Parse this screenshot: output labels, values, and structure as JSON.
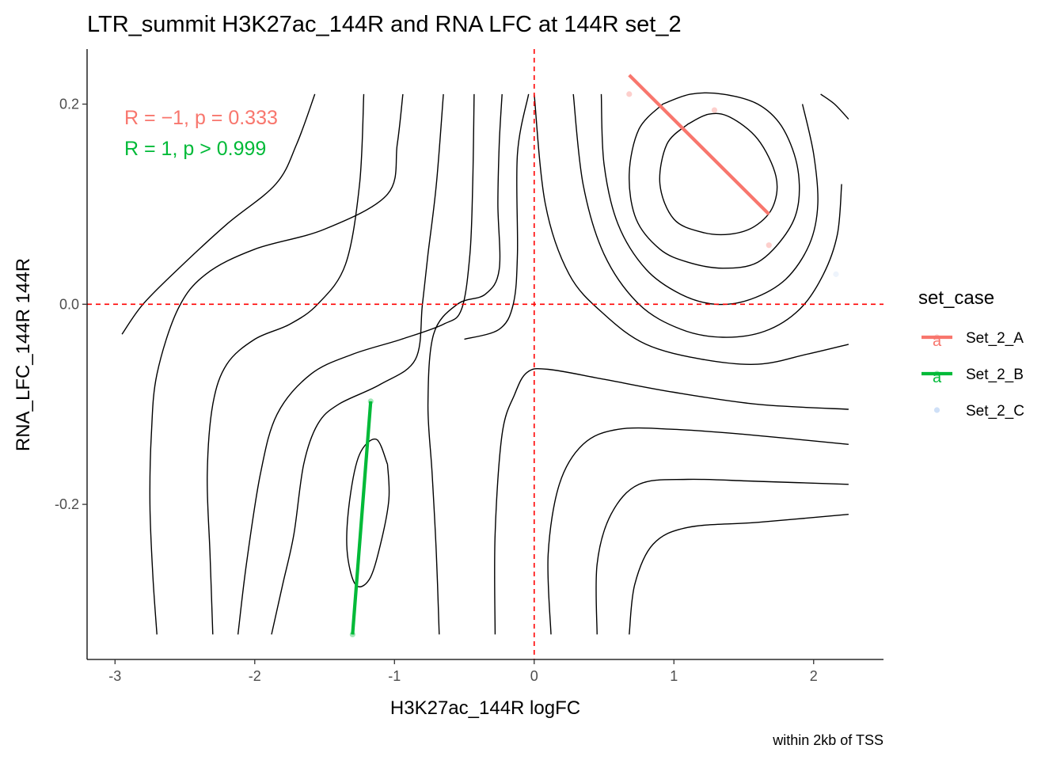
{
  "chart_data": {
    "type": "scatter",
    "title": "LTR_summit H3K27ac_144R and RNA LFC at 144R set_2",
    "xlabel": "H3K27ac_144R logFC",
    "ylabel": "RNA_LFC_144R 144R",
    "caption": "within 2kb of TSS",
    "xlim": [
      -3.2,
      2.5
    ],
    "ylim": [
      -0.355,
      0.255
    ],
    "x_ticks": [
      -3,
      -2,
      -1,
      0,
      1,
      2
    ],
    "x_tick_labels": [
      "-3",
      "-2",
      "-1",
      "0",
      "1",
      "2"
    ],
    "y_ticks": [
      -0.2,
      0.0,
      0.2
    ],
    "y_tick_labels": [
      "-0.2",
      "0.0",
      "0.2"
    ],
    "grid": false,
    "reference_lines": {
      "x": 0,
      "y": 0,
      "color": "#ff0000",
      "style": "dashed"
    },
    "legend": {
      "title": "set_case",
      "position": "right",
      "entries": [
        {
          "label": "Set_2_A",
          "color": "#f8766d",
          "key_glyph": "a"
        },
        {
          "label": "Set_2_B",
          "color": "#00ba38",
          "key_glyph": "a"
        },
        {
          "label": "Set_2_C",
          "color": "#cfe0f7",
          "key_glyph": ""
        }
      ]
    },
    "stats": [
      {
        "series": "Set_2_A",
        "text": "R = −1, p = 0.333",
        "color": "#f8766d"
      },
      {
        "series": "Set_2_B",
        "text": "R = 1, p > 0.999",
        "color": "#00ba38"
      }
    ],
    "series": [
      {
        "name": "Set_2_A",
        "color": "#f8766d",
        "points": [
          {
            "x": 0.68,
            "y": 0.21
          },
          {
            "x": 1.29,
            "y": 0.194
          },
          {
            "x": 1.68,
            "y": 0.059
          }
        ],
        "fit": {
          "x": [
            0.68,
            1.68
          ],
          "y": [
            0.229,
            0.09
          ]
        }
      },
      {
        "name": "Set_2_B",
        "color": "#00ba38",
        "points": [
          {
            "x": -1.17,
            "y": -0.097
          },
          {
            "x": -1.3,
            "y": -0.33
          }
        ],
        "fit": {
          "x": [
            -1.3,
            -1.17
          ],
          "y": [
            -0.33,
            -0.097
          ]
        }
      },
      {
        "name": "Set_2_C",
        "color": "#cfe0f7",
        "points": [
          {
            "x": 2.16,
            "y": 0.03
          }
        ]
      }
    ],
    "density_contours": [
      [
        [
          -1.05,
          -0.16
        ],
        [
          -1.13,
          -0.135
        ],
        [
          -1.25,
          -0.15
        ],
        [
          -1.32,
          -0.195
        ],
        [
          -1.34,
          -0.245
        ],
        [
          -1.28,
          -0.28
        ],
        [
          -1.18,
          -0.275
        ],
        [
          -1.1,
          -0.24
        ],
        [
          -1.04,
          -0.195
        ],
        [
          -1.05,
          -0.16
        ]
      ],
      [
        [
          1.1,
          0.18
        ],
        [
          0.95,
          0.16
        ],
        [
          0.9,
          0.12
        ],
        [
          1.0,
          0.085
        ],
        [
          1.2,
          0.072
        ],
        [
          1.4,
          0.07
        ],
        [
          1.58,
          0.078
        ],
        [
          1.71,
          0.098
        ],
        [
          1.73,
          0.128
        ],
        [
          1.6,
          0.165
        ],
        [
          1.4,
          0.187
        ],
        [
          1.25,
          0.19
        ],
        [
          1.1,
          0.18
        ]
      ],
      [
        [
          0.92,
          0.2
        ],
        [
          0.75,
          0.175
        ],
        [
          0.68,
          0.13
        ],
        [
          0.73,
          0.085
        ],
        [
          0.9,
          0.055
        ],
        [
          1.1,
          0.042
        ],
        [
          1.35,
          0.036
        ],
        [
          1.6,
          0.042
        ],
        [
          1.8,
          0.07
        ],
        [
          1.89,
          0.1
        ],
        [
          1.88,
          0.14
        ],
        [
          1.77,
          0.178
        ],
        [
          1.6,
          0.2
        ],
        [
          1.35,
          0.21
        ],
        [
          1.12,
          0.21
        ],
        [
          0.92,
          0.2
        ]
      ],
      [
        [
          0.48,
          0.21
        ],
        [
          0.5,
          0.14
        ],
        [
          0.6,
          0.08
        ],
        [
          0.8,
          0.035
        ],
        [
          1.05,
          0.01
        ],
        [
          1.3,
          0.0
        ],
        [
          1.55,
          0.005
        ],
        [
          1.8,
          0.025
        ],
        [
          1.97,
          0.06
        ],
        [
          2.03,
          0.1
        ],
        [
          2.0,
          0.15
        ],
        [
          1.92,
          0.2
        ]
      ],
      [
        [
          0.28,
          0.21
        ],
        [
          0.35,
          0.12
        ],
        [
          0.5,
          0.05
        ],
        [
          0.75,
          0.0
        ],
        [
          1.05,
          -0.025
        ],
        [
          1.35,
          -0.033
        ],
        [
          1.65,
          -0.027
        ],
        [
          1.9,
          -0.005
        ],
        [
          2.07,
          0.03
        ],
        [
          2.17,
          0.07
        ],
        [
          2.2,
          0.12
        ]
      ],
      [
        [
          0.0,
          0.21
        ],
        [
          0.08,
          0.1
        ],
        [
          0.25,
          0.03
        ],
        [
          0.5,
          -0.01
        ],
        [
          0.8,
          -0.04
        ],
        [
          1.2,
          -0.055
        ],
        [
          1.6,
          -0.06
        ],
        [
          1.95,
          -0.05
        ],
        [
          2.25,
          -0.04
        ]
      ],
      [
        [
          -0.04,
          0.21
        ],
        [
          -0.12,
          0.15
        ],
        [
          -0.12,
          0.05
        ],
        [
          -0.15,
          0.0
        ],
        [
          -0.25,
          -0.025
        ],
        [
          -0.5,
          -0.035
        ]
      ],
      [
        [
          2.05,
          0.21
        ],
        [
          2.15,
          0.2
        ],
        [
          2.25,
          0.185
        ]
      ],
      [
        [
          -0.28,
          -0.33
        ],
        [
          -0.28,
          -0.23
        ],
        [
          -0.23,
          -0.13
        ],
        [
          -0.14,
          -0.09
        ],
        [
          -0.05,
          -0.068
        ],
        [
          0.1,
          -0.065
        ],
        [
          0.5,
          -0.075
        ],
        [
          1.0,
          -0.088
        ],
        [
          1.6,
          -0.1
        ],
        [
          2.25,
          -0.105
        ]
      ],
      [
        [
          0.12,
          -0.33
        ],
        [
          0.1,
          -0.25
        ],
        [
          0.18,
          -0.18
        ],
        [
          0.35,
          -0.14
        ],
        [
          0.6,
          -0.125
        ],
        [
          1.0,
          -0.125
        ],
        [
          1.5,
          -0.13
        ],
        [
          2.25,
          -0.14
        ]
      ],
      [
        [
          0.45,
          -0.33
        ],
        [
          0.45,
          -0.26
        ],
        [
          0.55,
          -0.21
        ],
        [
          0.75,
          -0.18
        ],
        [
          1.1,
          -0.175
        ],
        [
          1.6,
          -0.177
        ],
        [
          2.25,
          -0.18
        ]
      ],
      [
        [
          0.68,
          -0.33
        ],
        [
          0.72,
          -0.28
        ],
        [
          0.85,
          -0.24
        ],
        [
          1.1,
          -0.223
        ],
        [
          1.6,
          -0.218
        ],
        [
          2.25,
          -0.21
        ]
      ],
      [
        [
          -2.12,
          -0.33
        ],
        [
          -2.06,
          -0.26
        ],
        [
          -1.96,
          -0.17
        ],
        [
          -1.84,
          -0.11
        ],
        [
          -1.6,
          -0.07
        ],
        [
          -1.3,
          -0.05
        ],
        [
          -0.95,
          -0.035
        ],
        [
          -0.65,
          -0.02
        ],
        [
          -0.52,
          -0.005
        ],
        [
          -0.46,
          0.05
        ],
        [
          -0.44,
          0.12
        ],
        [
          -0.43,
          0.21
        ]
      ],
      [
        [
          -0.68,
          -0.33
        ],
        [
          -0.7,
          -0.25
        ],
        [
          -0.73,
          -0.17
        ],
        [
          -0.76,
          -0.1
        ],
        [
          -0.72,
          -0.03
        ],
        [
          -0.55,
          0.0
        ],
        [
          -0.35,
          0.01
        ],
        [
          -0.25,
          0.035
        ],
        [
          -0.26,
          0.1
        ],
        [
          -0.25,
          0.16
        ],
        [
          -0.23,
          0.21
        ]
      ],
      [
        [
          -1.88,
          -0.33
        ],
        [
          -1.8,
          -0.28
        ],
        [
          -1.72,
          -0.23
        ],
        [
          -1.65,
          -0.16
        ],
        [
          -1.55,
          -0.12
        ],
        [
          -1.4,
          -0.1
        ],
        [
          -1.1,
          -0.08
        ],
        [
          -0.85,
          -0.055
        ],
        [
          -0.8,
          0.0
        ],
        [
          -0.76,
          0.05
        ],
        [
          -0.7,
          0.12
        ],
        [
          -0.65,
          0.21
        ]
      ],
      [
        [
          -2.7,
          -0.33
        ],
        [
          -2.73,
          -0.27
        ],
        [
          -2.75,
          -0.2
        ],
        [
          -2.74,
          -0.13
        ],
        [
          -2.7,
          -0.07
        ],
        [
          -2.55,
          -0.005
        ],
        [
          -2.35,
          0.03
        ],
        [
          -2.0,
          0.055
        ],
        [
          -1.5,
          0.075
        ],
        [
          -1.05,
          0.11
        ],
        [
          -0.98,
          0.16
        ],
        [
          -0.94,
          0.21
        ]
      ],
      [
        [
          -2.3,
          -0.33
        ],
        [
          -2.32,
          -0.25
        ],
        [
          -2.34,
          -0.17
        ],
        [
          -2.3,
          -0.1
        ],
        [
          -2.2,
          -0.06
        ],
        [
          -2.0,
          -0.035
        ],
        [
          -1.75,
          -0.02
        ],
        [
          -1.55,
          0.0
        ],
        [
          -1.35,
          0.04
        ],
        [
          -1.25,
          0.12
        ],
        [
          -1.22,
          0.21
        ]
      ],
      [
        [
          -2.95,
          -0.03
        ],
        [
          -2.8,
          0.0
        ],
        [
          -2.55,
          0.035
        ],
        [
          -2.2,
          0.08
        ],
        [
          -1.85,
          0.12
        ],
        [
          -1.7,
          0.16
        ],
        [
          -1.57,
          0.21
        ]
      ]
    ]
  }
}
